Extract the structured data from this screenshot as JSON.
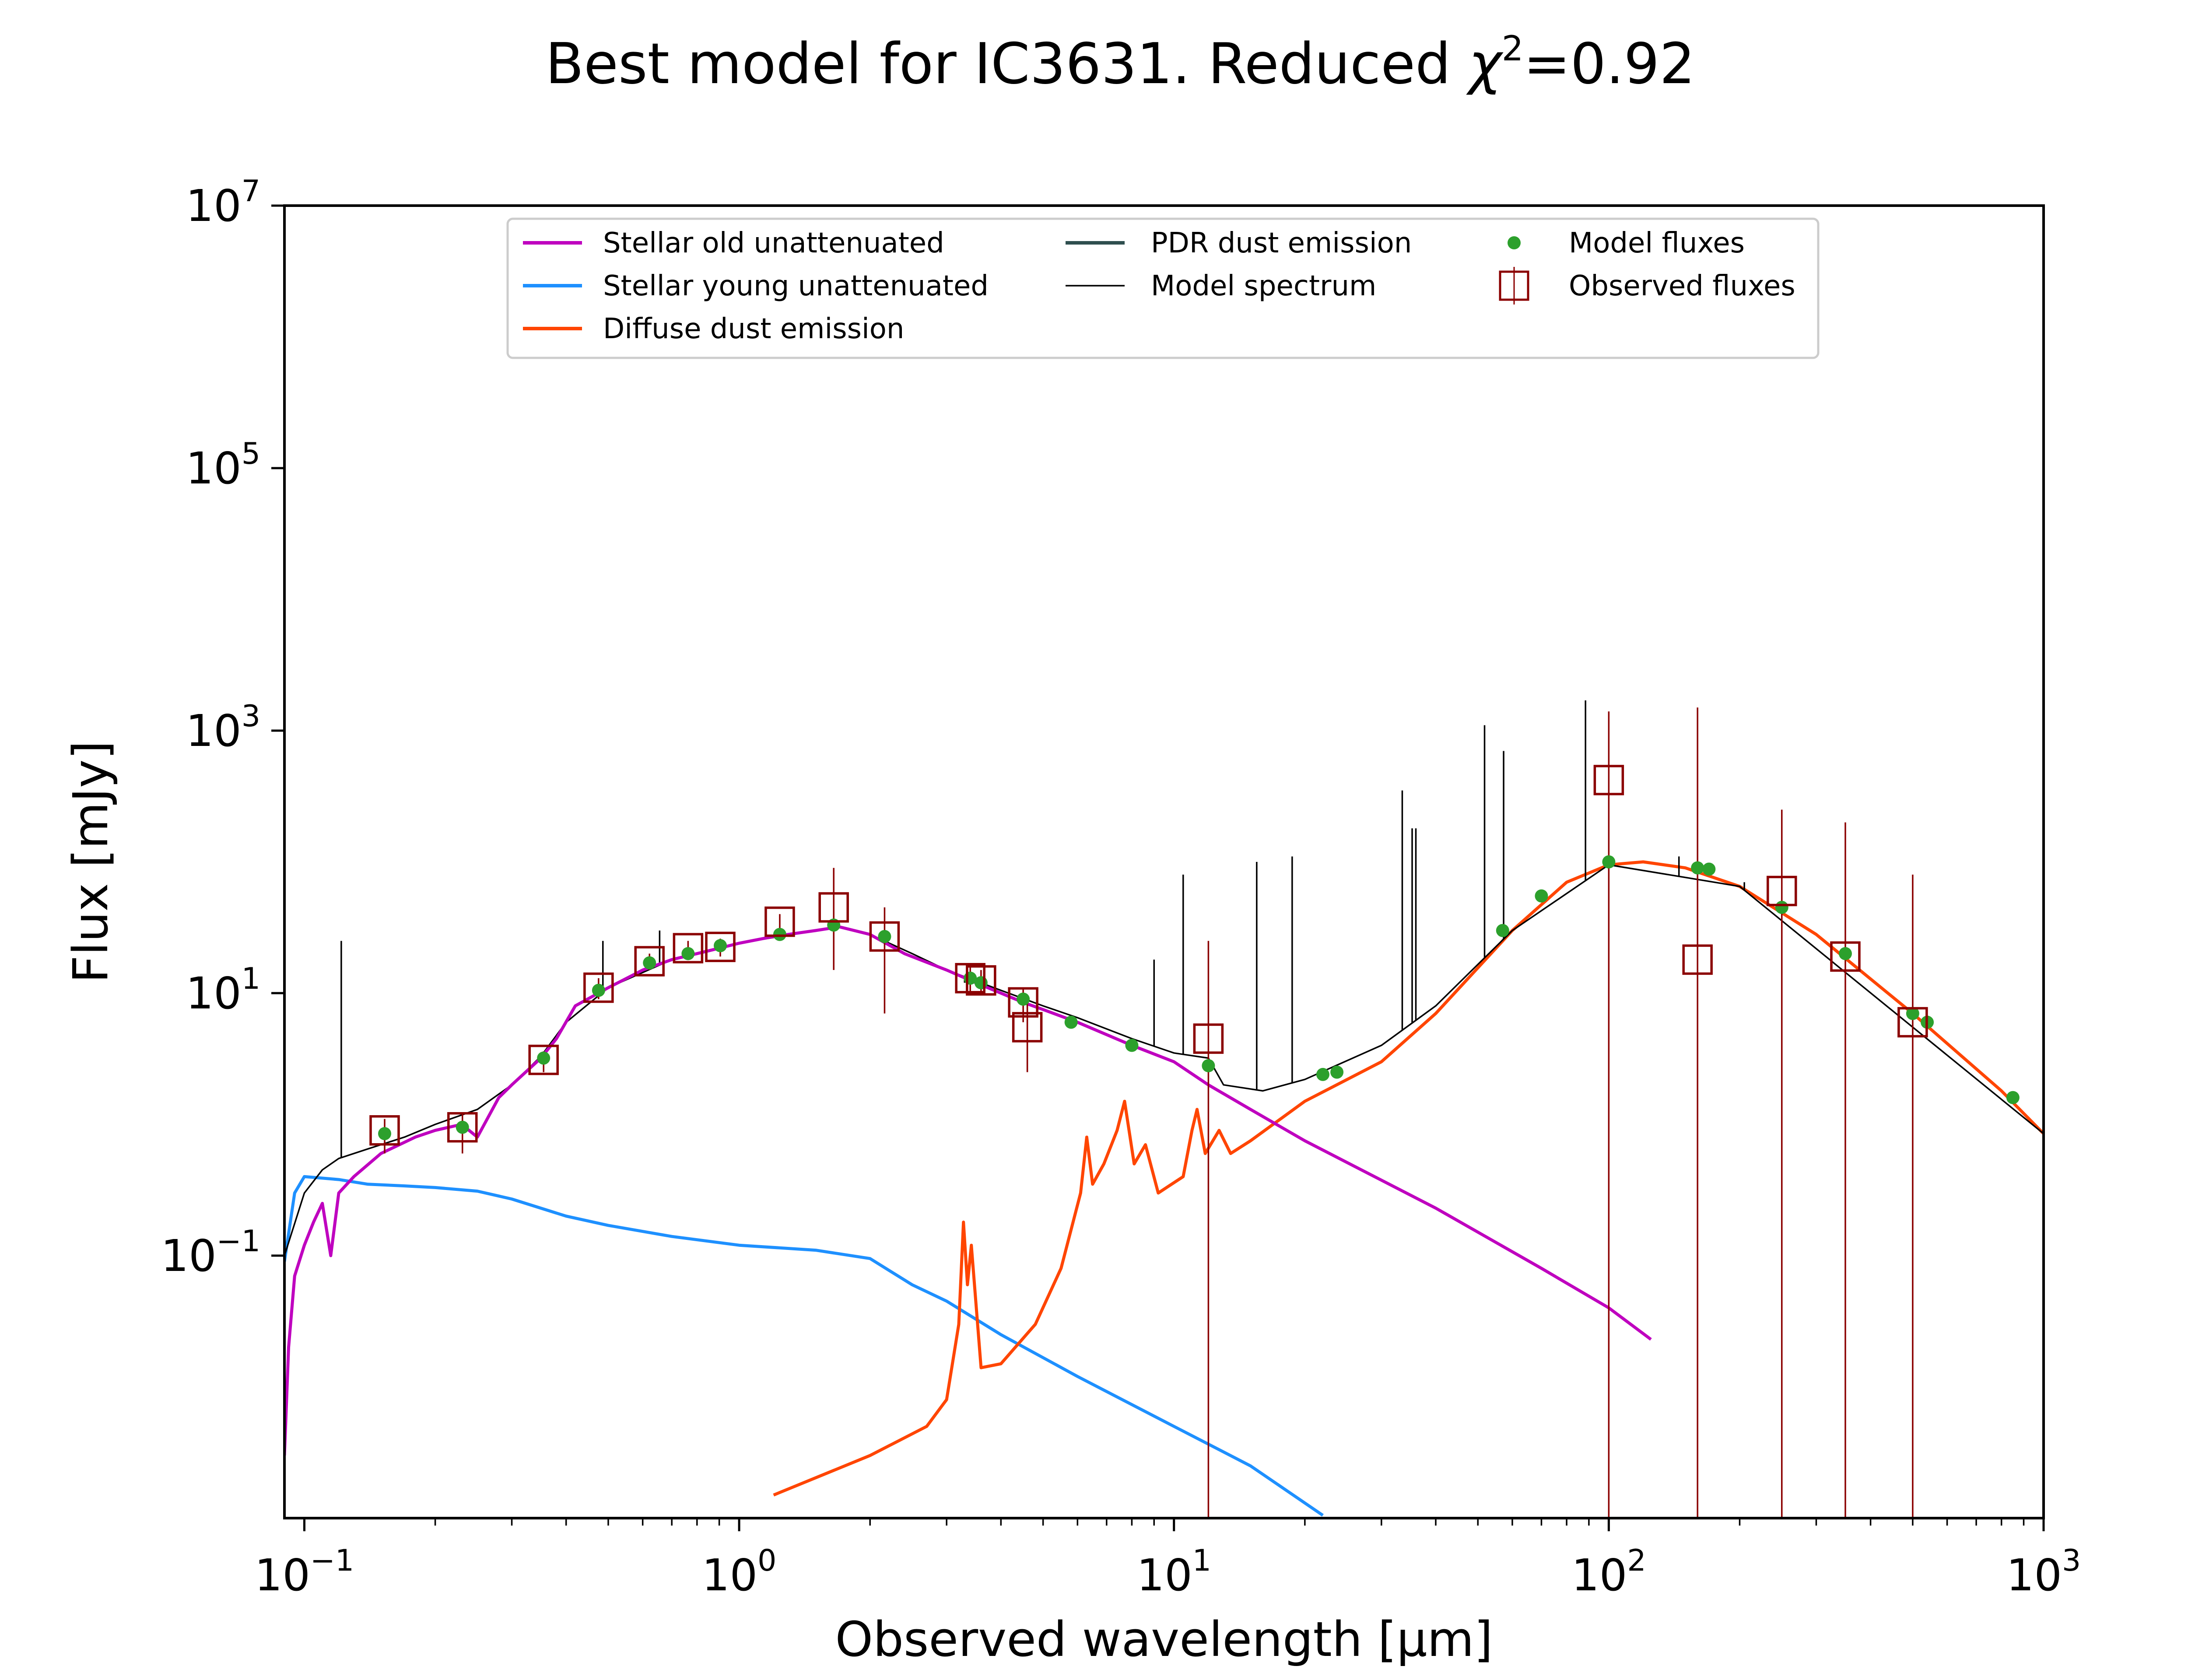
{
  "chart_data": {
    "type": "line",
    "title_prefix": "Best model for IC3631. Reduced ",
    "title_chi": "χ",
    "title_exp": "2",
    "title_suffix": "=0.92",
    "xlabel": "Observed wavelength [μm]",
    "ylabel": "Flux [mJy]",
    "x_scale": "log",
    "y_scale": "log",
    "xlim": [
      0.09,
      1000
    ],
    "ylim": [
      0.001,
      10000000
    ],
    "x_ticks": [
      {
        "value": 0.1,
        "base": "10",
        "exp": "−1"
      },
      {
        "value": 1,
        "base": "10",
        "exp": "0"
      },
      {
        "value": 10,
        "base": "10",
        "exp": "1"
      },
      {
        "value": 100,
        "base": "10",
        "exp": "2"
      },
      {
        "value": 1000,
        "base": "10",
        "exp": "3"
      }
    ],
    "y_ticks": [
      {
        "value": 0.1,
        "base": "10",
        "exp": "−1"
      },
      {
        "value": 10,
        "base": "10",
        "exp": "1"
      },
      {
        "value": 1000,
        "base": "10",
        "exp": "3"
      },
      {
        "value": 100000,
        "base": "10",
        "exp": "5"
      },
      {
        "value": 10000000,
        "base": "10",
        "exp": "7"
      }
    ],
    "legend_position": "top-center",
    "legend": {
      "stellar_old": "Stellar old unattenuated",
      "stellar_young": "Stellar young unattenuated",
      "diffuse_dust": "Diffuse dust emission",
      "pdr_dust": "PDR dust emission",
      "model_spectrum": "Model spectrum",
      "model_fluxes": "Model fluxes",
      "observed_fluxes": "Observed fluxes"
    },
    "colors": {
      "stellar_old": "#bf00bf",
      "stellar_young": "#1e90ff",
      "diffuse_dust": "#ff4500",
      "pdr_dust": "#2f4f4f",
      "model_spectrum": "#000000",
      "model_fluxes": "#2ca02c",
      "observed_fluxes": "#8b0000"
    },
    "series": [
      {
        "key": "stellar_old",
        "points": [
          [
            0.09,
            0.003
          ],
          [
            0.092,
            0.02
          ],
          [
            0.095,
            0.07
          ],
          [
            0.1,
            0.12
          ],
          [
            0.105,
            0.18
          ],
          [
            0.11,
            0.25
          ],
          [
            0.115,
            0.1
          ],
          [
            0.12,
            0.3
          ],
          [
            0.13,
            0.4
          ],
          [
            0.15,
            0.6
          ],
          [
            0.18,
            0.8
          ],
          [
            0.2,
            0.9
          ],
          [
            0.23,
            1.0
          ],
          [
            0.25,
            0.8
          ],
          [
            0.28,
            1.6
          ],
          [
            0.3,
            2.0
          ],
          [
            0.35,
            3.2
          ],
          [
            0.38,
            4.5
          ],
          [
            0.42,
            8
          ],
          [
            0.5,
            11
          ],
          [
            0.6,
            15
          ],
          [
            0.7,
            18
          ],
          [
            0.8,
            20
          ],
          [
            0.9,
            22
          ],
          [
            1.0,
            24
          ],
          [
            1.2,
            27
          ],
          [
            1.5,
            30
          ],
          [
            1.7,
            32
          ],
          [
            2.0,
            28
          ],
          [
            2.4,
            20
          ],
          [
            3.0,
            15
          ],
          [
            3.5,
            12
          ],
          [
            4.0,
            10
          ],
          [
            4.5,
            8.5
          ],
          [
            5.0,
            7.5
          ],
          [
            6.0,
            6.0
          ],
          [
            8.0,
            4.0
          ],
          [
            10.0,
            3.0
          ],
          [
            12.0,
            2.0
          ],
          [
            15.0,
            1.3
          ],
          [
            20.0,
            0.75
          ],
          [
            40.0,
            0.23
          ],
          [
            70.0,
            0.08
          ],
          [
            100.0,
            0.04
          ],
          [
            125.0,
            0.023
          ]
        ]
      },
      {
        "key": "stellar_young",
        "points": [
          [
            0.09,
            0.09
          ],
          [
            0.095,
            0.3
          ],
          [
            0.1,
            0.4
          ],
          [
            0.12,
            0.38
          ],
          [
            0.14,
            0.35
          ],
          [
            0.17,
            0.34
          ],
          [
            0.2,
            0.33
          ],
          [
            0.25,
            0.31
          ],
          [
            0.3,
            0.27
          ],
          [
            0.4,
            0.2
          ],
          [
            0.5,
            0.17
          ],
          [
            0.7,
            0.14
          ],
          [
            1.0,
            0.12
          ],
          [
            1.5,
            0.11
          ],
          [
            2.0,
            0.095
          ],
          [
            2.5,
            0.06
          ],
          [
            3.0,
            0.045
          ],
          [
            4.0,
            0.025
          ],
          [
            6.0,
            0.012
          ],
          [
            10.0,
            0.005
          ],
          [
            15.0,
            0.0025
          ],
          [
            22.0,
            0.00105
          ]
        ]
      },
      {
        "key": "diffuse_dust",
        "points": [
          [
            1.2,
            0.0015
          ],
          [
            2.0,
            0.003
          ],
          [
            2.7,
            0.005
          ],
          [
            3.0,
            0.008
          ],
          [
            3.2,
            0.03
          ],
          [
            3.28,
            0.18
          ],
          [
            3.35,
            0.06
          ],
          [
            3.42,
            0.12
          ],
          [
            3.6,
            0.014
          ],
          [
            4.0,
            0.015
          ],
          [
            4.8,
            0.03
          ],
          [
            5.5,
            0.08
          ],
          [
            6.1,
            0.3
          ],
          [
            6.3,
            0.8
          ],
          [
            6.5,
            0.35
          ],
          [
            6.9,
            0.5
          ],
          [
            7.4,
            0.9
          ],
          [
            7.7,
            1.5
          ],
          [
            8.1,
            0.5
          ],
          [
            8.6,
            0.7
          ],
          [
            9.2,
            0.3
          ],
          [
            10.5,
            0.4
          ],
          [
            11.0,
            0.9
          ],
          [
            11.3,
            1.3
          ],
          [
            11.8,
            0.6
          ],
          [
            12.7,
            0.9
          ],
          [
            13.5,
            0.6
          ],
          [
            15.0,
            0.75
          ],
          [
            20.0,
            1.5
          ],
          [
            30.0,
            3.0
          ],
          [
            40.0,
            7.0
          ],
          [
            60.0,
            30.0
          ],
          [
            80.0,
            70.0
          ],
          [
            100.0,
            95.0
          ],
          [
            120.0,
            100.0
          ],
          [
            150.0,
            90.0
          ],
          [
            200.0,
            65.0
          ],
          [
            300.0,
            28.0
          ],
          [
            500.0,
            7.0
          ],
          [
            800.0,
            1.8
          ],
          [
            1000.0,
            0.85
          ]
        ]
      },
      {
        "key": "model_spectrum",
        "points": [
          [
            0.09,
            0.1
          ],
          [
            0.1,
            0.3
          ],
          [
            0.11,
            0.45
          ],
          [
            0.12,
            0.55
          ],
          [
            0.14,
            0.65
          ],
          [
            0.17,
            0.8
          ],
          [
            0.2,
            1.0
          ],
          [
            0.25,
            1.3
          ],
          [
            0.3,
            2.0
          ],
          [
            0.35,
            3.3
          ],
          [
            0.4,
            6.0
          ],
          [
            0.5,
            11.0
          ],
          [
            0.7,
            18.0
          ],
          [
            1.0,
            24.0
          ],
          [
            1.5,
            30.0
          ],
          [
            1.7,
            32.0
          ],
          [
            2.0,
            28.0
          ],
          [
            2.5,
            20.0
          ],
          [
            3.0,
            15.0
          ],
          [
            4.0,
            10.5
          ],
          [
            5.0,
            8.0
          ],
          [
            6.0,
            6.5
          ],
          [
            8.0,
            4.5
          ],
          [
            10.0,
            3.5
          ],
          [
            12.0,
            3.2
          ],
          [
            13.0,
            2.0
          ],
          [
            16.0,
            1.8
          ],
          [
            20.0,
            2.2
          ],
          [
            30.0,
            4.0
          ],
          [
            40.0,
            8.0
          ],
          [
            60.0,
            30.0
          ],
          [
            100.0,
            95.0
          ],
          [
            200.0,
            65.0
          ],
          [
            1000.0,
            0.85
          ]
        ]
      }
    ],
    "emission_lines": [
      [
        0.1216,
        25
      ],
      [
        0.486,
        25
      ],
      [
        0.6563,
        30
      ],
      [
        3.3,
        12
      ],
      [
        9.0,
        18
      ],
      [
        10.5,
        80
      ],
      [
        15.5,
        100
      ],
      [
        18.7,
        110
      ],
      [
        33.5,
        350
      ],
      [
        35.3,
        180
      ],
      [
        36.0,
        180
      ],
      [
        51.8,
        1100
      ],
      [
        57.3,
        700
      ],
      [
        88.4,
        1700
      ],
      [
        145.0,
        110
      ],
      [
        205.0,
        70
      ]
    ],
    "model_fluxes": [
      [
        0.153,
        0.85
      ],
      [
        0.231,
        0.95
      ],
      [
        0.355,
        3.2
      ],
      [
        0.475,
        10.5
      ],
      [
        0.622,
        17
      ],
      [
        0.763,
        20
      ],
      [
        0.905,
        23
      ],
      [
        1.24,
        28
      ],
      [
        1.65,
        33
      ],
      [
        2.16,
        27
      ],
      [
        3.4,
        13
      ],
      [
        3.6,
        12
      ],
      [
        4.5,
        9
      ],
      [
        5.8,
        6
      ],
      [
        8.0,
        4
      ],
      [
        12.0,
        2.8
      ],
      [
        22.0,
        2.4
      ],
      [
        23.7,
        2.5
      ],
      [
        57.0,
        30
      ],
      [
        70.0,
        55
      ],
      [
        100.0,
        100
      ],
      [
        160.0,
        90
      ],
      [
        170.0,
        88
      ],
      [
        250.0,
        45
      ],
      [
        350.0,
        20
      ],
      [
        500.0,
        7
      ],
      [
        540.0,
        6
      ],
      [
        850.0,
        1.6
      ]
    ],
    "observed_fluxes": [
      {
        "x": 0.153,
        "y": 0.9,
        "err_low": 0.6,
        "err_high": 1.1
      },
      {
        "x": 0.231,
        "y": 0.95,
        "err_low": 0.6,
        "err_high": 1.2
      },
      {
        "x": 0.355,
        "y": 3.1,
        "err_low": 2.5,
        "err_high": 3.6
      },
      {
        "x": 0.475,
        "y": 11,
        "err_low": 9,
        "err_high": 13
      },
      {
        "x": 0.622,
        "y": 17.5,
        "err_low": 15,
        "err_high": 20
      },
      {
        "x": 0.763,
        "y": 22,
        "err_low": 19,
        "err_high": 25
      },
      {
        "x": 0.905,
        "y": 22.5,
        "err_low": 19,
        "err_high": 26
      },
      {
        "x": 1.24,
        "y": 35,
        "err_low": 30,
        "err_high": 40
      },
      {
        "x": 1.65,
        "y": 45,
        "err_low": 15,
        "err_high": 90
      },
      {
        "x": 2.16,
        "y": 27,
        "err_low": 7,
        "err_high": 45
      },
      {
        "x": 3.4,
        "y": 13,
        "err_low": 10,
        "err_high": 16
      },
      {
        "x": 3.6,
        "y": 12.5,
        "err_low": 10,
        "err_high": 15
      },
      {
        "x": 4.5,
        "y": 8.5,
        "err_low": 6,
        "err_high": 11
      },
      {
        "x": 4.6,
        "y": 5.5,
        "err_low": 2.5,
        "err_high": 9
      },
      {
        "x": 12.0,
        "y": 4.5,
        "err_low": 0.001,
        "err_high": 25
      },
      {
        "x": 100.0,
        "y": 420,
        "err_low": 0.001,
        "err_high": 1400
      },
      {
        "x": 160.0,
        "y": 18,
        "err_low": 0.001,
        "err_high": 1500
      },
      {
        "x": 250.0,
        "y": 60,
        "err_low": 0.001,
        "err_high": 250
      },
      {
        "x": 350.0,
        "y": 19,
        "err_low": 0.001,
        "err_high": 200
      },
      {
        "x": 500.0,
        "y": 6,
        "err_low": 0.001,
        "err_high": 80
      }
    ]
  }
}
